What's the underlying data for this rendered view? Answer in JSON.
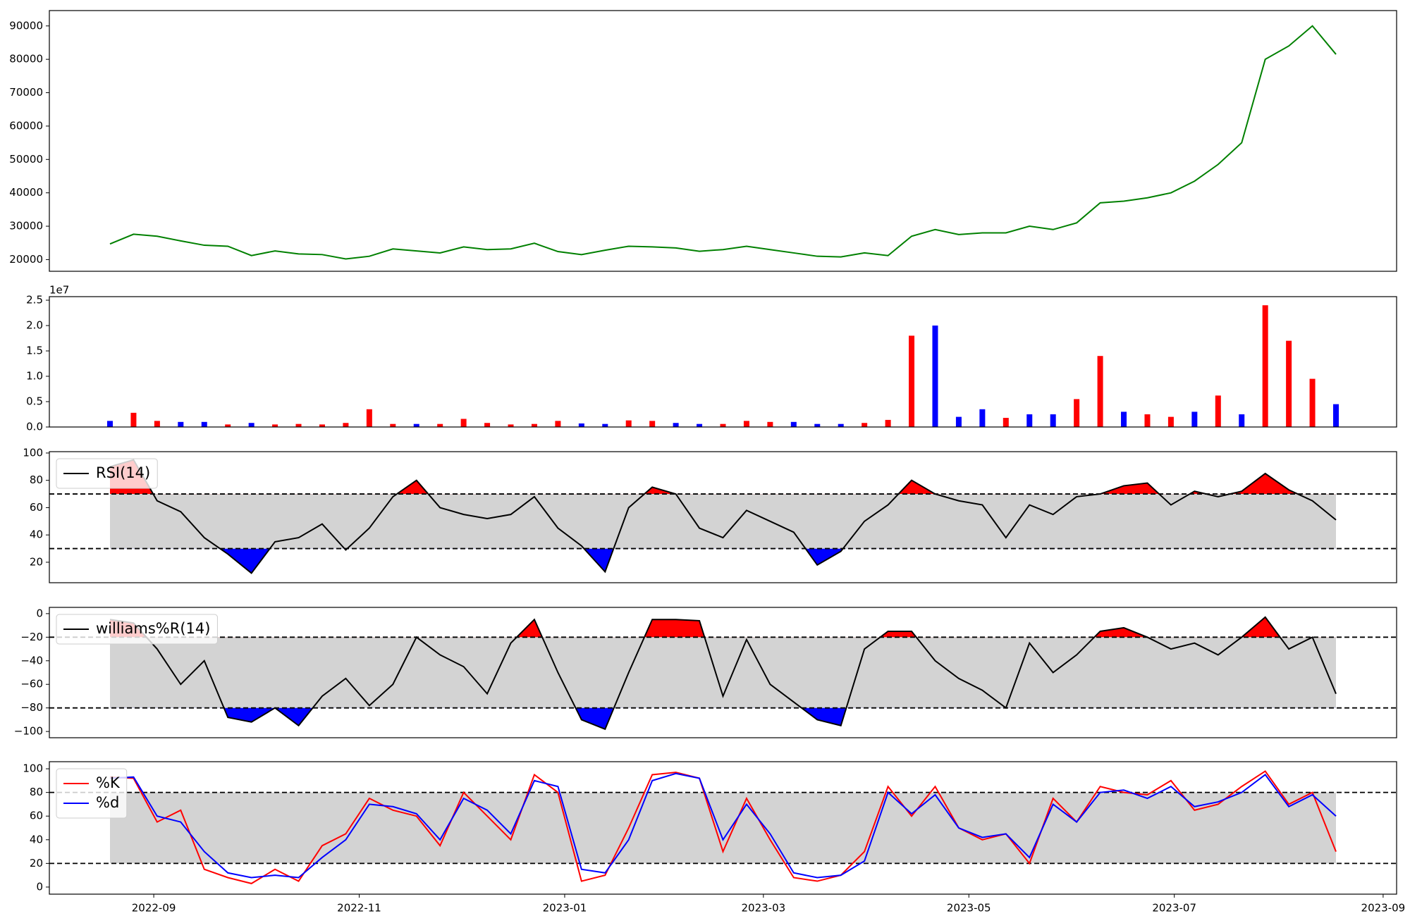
{
  "chart_data": [
    {
      "type": "line",
      "xlim": [
        0,
        400
      ],
      "ylim": [
        16500,
        94600
      ],
      "yticks": [
        20000,
        30000,
        40000,
        50000,
        60000,
        70000,
        80000,
        90000
      ],
      "x": [
        18,
        25,
        32,
        39,
        46,
        53,
        60,
        67,
        74,
        81,
        88,
        95,
        102,
        109,
        116,
        123,
        130,
        137,
        144,
        151,
        158,
        165,
        172,
        179,
        186,
        193,
        200,
        207,
        214,
        221,
        228,
        235,
        242,
        249,
        256,
        263,
        270,
        277,
        284,
        291,
        298,
        305,
        312,
        319,
        326,
        333,
        340,
        347,
        354,
        361,
        368,
        375,
        382
      ],
      "series": [
        {
          "color": "green",
          "values": [
            24700,
            27600,
            27000,
            25600,
            24300,
            24000,
            21200,
            22600,
            21700,
            21500,
            20200,
            21000,
            23200,
            22600,
            22000,
            23800,
            23000,
            23200,
            24900,
            22400,
            21500,
            22800,
            24000,
            23800,
            23500,
            22500,
            23000,
            24000,
            23000,
            22000,
            21000,
            20800,
            22000,
            21200,
            27000,
            29000,
            27500,
            28000,
            28000,
            30000,
            29000,
            31000,
            37000,
            37500,
            38500,
            40000,
            43500,
            48500,
            55000,
            80000,
            84000,
            90000,
            81500
          ]
        }
      ]
    },
    {
      "type": "bar",
      "xlim": [
        0,
        400
      ],
      "ylim": [
        0,
        25700000
      ],
      "offset_label": "1e7",
      "yticks": [
        {
          "value": 0,
          "label": "0.0"
        },
        {
          "value": 5000000,
          "label": "0.5"
        },
        {
          "value": 10000000,
          "label": "1.0"
        },
        {
          "value": 15000000,
          "label": "1.5"
        },
        {
          "value": 20000000,
          "label": "2.0"
        },
        {
          "value": 25000000,
          "label": "2.5"
        }
      ],
      "x": [
        18,
        25,
        32,
        39,
        46,
        53,
        60,
        67,
        74,
        81,
        88,
        95,
        102,
        109,
        116,
        123,
        130,
        137,
        144,
        151,
        158,
        165,
        172,
        179,
        186,
        193,
        200,
        207,
        214,
        221,
        228,
        235,
        242,
        249,
        256,
        263,
        270,
        277,
        284,
        291,
        298,
        305,
        312,
        319,
        326,
        333,
        340,
        347,
        354,
        361,
        368,
        375,
        382
      ],
      "values": [
        1200000,
        2800000,
        1200000,
        1000000,
        1000000,
        500000,
        800000,
        500000,
        600000,
        500000,
        800000,
        3500000,
        600000,
        600000,
        600000,
        1600000,
        800000,
        500000,
        600000,
        1200000,
        700000,
        600000,
        1300000,
        1200000,
        800000,
        600000,
        600000,
        1200000,
        1000000,
        1000000,
        600000,
        600000,
        800000,
        1400000,
        18000000,
        20000000,
        2000000,
        3500000,
        1800000,
        2500000,
        2500000,
        5500000,
        14000000,
        3000000,
        2500000,
        2000000,
        3000000,
        6200000,
        2500000,
        24000000,
        17000000,
        9500000,
        4500000
      ],
      "colors": [
        "blue",
        "red",
        "red",
        "blue",
        "blue",
        "red",
        "blue",
        "red",
        "red",
        "red",
        "red",
        "red",
        "red",
        "blue",
        "red",
        "red",
        "red",
        "red",
        "red",
        "red",
        "blue",
        "blue",
        "red",
        "red",
        "blue",
        "blue",
        "red",
        "red",
        "red",
        "blue",
        "blue",
        "blue",
        "red",
        "red",
        "red",
        "blue",
        "blue",
        "blue",
        "red",
        "blue",
        "blue",
        "red",
        "red",
        "blue",
        "red",
        "red",
        "blue",
        "red",
        "blue",
        "red",
        "red",
        "red",
        "blue"
      ]
    },
    {
      "type": "line",
      "xlim": [
        0,
        400
      ],
      "ylim": [
        5,
        101
      ],
      "yticks": [
        20,
        40,
        60,
        80,
        100
      ],
      "thresholds": [
        30,
        70
      ],
      "band_color": "lightgray",
      "above_color": "red",
      "below_color": "blue",
      "legend": "upper left",
      "x": [
        18,
        25,
        32,
        39,
        46,
        53,
        60,
        67,
        74,
        81,
        88,
        95,
        102,
        109,
        116,
        123,
        130,
        137,
        144,
        151,
        158,
        165,
        172,
        179,
        186,
        193,
        200,
        207,
        214,
        221,
        228,
        235,
        242,
        249,
        256,
        263,
        270,
        277,
        284,
        291,
        298,
        305,
        312,
        319,
        326,
        333,
        340,
        347,
        354,
        361,
        368,
        375,
        382
      ],
      "series": [
        {
          "name": "RSI(14)",
          "color": "black",
          "values": [
            90,
            95,
            65,
            57,
            38,
            26,
            12,
            35,
            38,
            48,
            29,
            45,
            68,
            80,
            60,
            55,
            52,
            55,
            68,
            45,
            32,
            13,
            60,
            75,
            70,
            45,
            38,
            58,
            50,
            42,
            18,
            28,
            50,
            62,
            80,
            70,
            65,
            62,
            38,
            62,
            55,
            68,
            70,
            76,
            78,
            62,
            72,
            68,
            72,
            85,
            73,
            65,
            51
          ]
        }
      ]
    },
    {
      "type": "line",
      "xlim": [
        0,
        400
      ],
      "ylim": [
        -105.3,
        5.3
      ],
      "yticks": [
        {
          "value": -100,
          "label": "−100"
        },
        {
          "value": -80,
          "label": "−80"
        },
        {
          "value": -60,
          "label": "−60"
        },
        {
          "value": -40,
          "label": "−40"
        },
        {
          "value": -20,
          "label": "−20"
        },
        0
      ],
      "thresholds": [
        -80,
        -20
      ],
      "band_color": "lightgray",
      "above_color": "red",
      "below_color": "blue",
      "legend": "upper left",
      "x": [
        18,
        25,
        32,
        39,
        46,
        53,
        60,
        67,
        74,
        81,
        88,
        95,
        102,
        109,
        116,
        123,
        130,
        137,
        144,
        151,
        158,
        165,
        172,
        179,
        186,
        193,
        200,
        207,
        214,
        221,
        228,
        235,
        242,
        249,
        256,
        263,
        270,
        277,
        284,
        291,
        298,
        305,
        312,
        319,
        326,
        333,
        340,
        347,
        354,
        361,
        368,
        375,
        382
      ],
      "series": [
        {
          "name": "williams%R(14)",
          "color": "black",
          "values": [
            -5,
            -8,
            -30,
            -60,
            -40,
            -88,
            -92,
            -80,
            -95,
            -70,
            -55,
            -78,
            -60,
            -20,
            -35,
            -45,
            -68,
            -25,
            -5,
            -50,
            -90,
            -98,
            -50,
            -5,
            -5,
            -6,
            -70,
            -22,
            -60,
            -75,
            -90,
            -95,
            -30,
            -15,
            -15,
            -40,
            -55,
            -65,
            -80,
            -25,
            -50,
            -35,
            -15,
            -12,
            -20,
            -30,
            -25,
            -35,
            -20,
            -3,
            -30,
            -20,
            -68
          ]
        }
      ]
    },
    {
      "type": "line",
      "xlim": [
        0,
        400
      ],
      "ylim": [
        -6,
        106
      ],
      "yticks": [
        0,
        20,
        40,
        60,
        80,
        100
      ],
      "thresholds": [
        20,
        80
      ],
      "band_color": "lightgray",
      "legend": "upper left",
      "xticks": [
        {
          "value": 31,
          "label": "2022-09"
        },
        {
          "value": 92,
          "label": "2022-11"
        },
        {
          "value": 153,
          "label": "2023-01"
        },
        {
          "value": 212,
          "label": "2023-03"
        },
        {
          "value": 273,
          "label": "2023-05"
        },
        {
          "value": 334,
          "label": "2023-07"
        },
        {
          "value": 396,
          "label": "2023-09"
        }
      ],
      "x": [
        18,
        25,
        32,
        39,
        46,
        53,
        60,
        67,
        74,
        81,
        88,
        95,
        102,
        109,
        116,
        123,
        130,
        137,
        144,
        151,
        158,
        165,
        172,
        179,
        186,
        193,
        200,
        207,
        214,
        221,
        228,
        235,
        242,
        249,
        256,
        263,
        270,
        277,
        284,
        291,
        298,
        305,
        312,
        319,
        326,
        333,
        340,
        347,
        354,
        361,
        368,
        375,
        382
      ],
      "series": [
        {
          "name": "%K",
          "color": "red",
          "values": [
            93,
            92,
            55,
            65,
            15,
            8,
            3,
            15,
            5,
            35,
            45,
            75,
            65,
            60,
            35,
            80,
            60,
            40,
            95,
            80,
            5,
            10,
            50,
            95,
            97,
            92,
            30,
            75,
            40,
            8,
            5,
            10,
            30,
            85,
            60,
            85,
            50,
            40,
            45,
            20,
            75,
            55,
            85,
            80,
            78,
            90,
            65,
            70,
            85,
            98,
            70,
            80,
            30
          ]
        },
        {
          "name": "%d",
          "color": "blue",
          "values": [
            92,
            93,
            60,
            55,
            30,
            12,
            8,
            10,
            8,
            25,
            40,
            70,
            68,
            62,
            40,
            75,
            65,
            45,
            90,
            85,
            15,
            12,
            40,
            90,
            96,
            92,
            40,
            70,
            45,
            12,
            8,
            10,
            22,
            80,
            62,
            78,
            50,
            42,
            45,
            25,
            70,
            55,
            80,
            82,
            75,
            85,
            68,
            72,
            80,
            95,
            68,
            78,
            60
          ]
        }
      ]
    }
  ]
}
